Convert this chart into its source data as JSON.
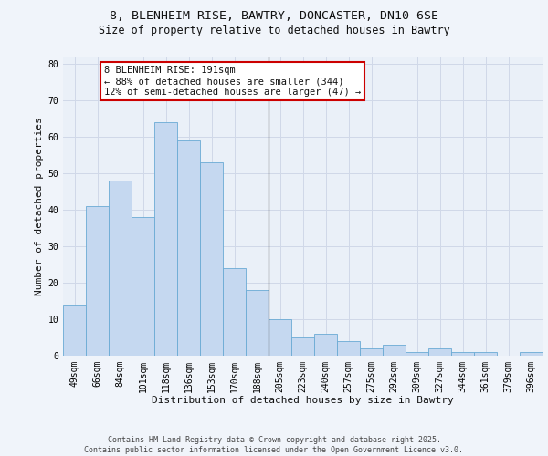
{
  "title_line1": "8, BLENHEIM RISE, BAWTRY, DONCASTER, DN10 6SE",
  "title_line2": "Size of property relative to detached houses in Bawtry",
  "xlabel": "Distribution of detached houses by size in Bawtry",
  "ylabel": "Number of detached properties",
  "categories": [
    "49sqm",
    "66sqm",
    "84sqm",
    "101sqm",
    "118sqm",
    "136sqm",
    "153sqm",
    "170sqm",
    "188sqm",
    "205sqm",
    "223sqm",
    "240sqm",
    "257sqm",
    "275sqm",
    "292sqm",
    "309sqm",
    "327sqm",
    "344sqm",
    "361sqm",
    "379sqm",
    "396sqm"
  ],
  "values": [
    14,
    41,
    48,
    38,
    64,
    59,
    53,
    24,
    18,
    10,
    5,
    6,
    4,
    2,
    3,
    1,
    2,
    1,
    1,
    0,
    1
  ],
  "bar_color": "#c5d8f0",
  "bar_edge_color": "#6aaad4",
  "annotation_line1": "8 BLENHEIM RISE: 191sqm",
  "annotation_line2": "← 88% of detached houses are smaller (344)",
  "annotation_line3": "12% of semi-detached houses are larger (47) →",
  "annotation_box_color": "#ffffff",
  "annotation_box_edge_color": "#cc0000",
  "vline_color": "#444444",
  "ylim": [
    0,
    82
  ],
  "yticks": [
    0,
    10,
    20,
    30,
    40,
    50,
    60,
    70,
    80
  ],
  "grid_color": "#d0d8e8",
  "bg_color": "#eaf0f8",
  "fig_bg_color": "#f0f4fa",
  "footer_text": "Contains HM Land Registry data © Crown copyright and database right 2025.\nContains public sector information licensed under the Open Government Licence v3.0.",
  "title_fontsize": 9.5,
  "subtitle_fontsize": 8.5,
  "axis_label_fontsize": 8,
  "tick_fontsize": 7,
  "annotation_fontsize": 7.5,
  "footer_fontsize": 6
}
